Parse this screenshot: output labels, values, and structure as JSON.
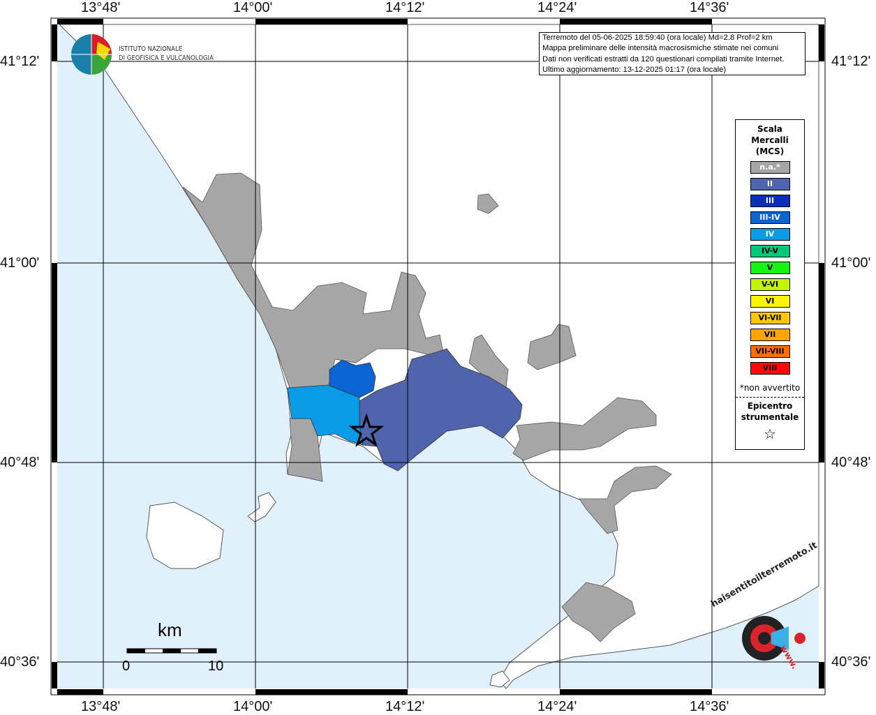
{
  "info_box": {
    "lines": [
      "Terremoto del 05-06-2025 18:59:40 (ora locale) Md=2.8 Prof=2 km",
      "Mappa preliminare delle intensità macrosismiche stimate nei comuni",
      "Dati non verificati estratti da 120 questionari compilati tramite Internet.",
      "Ultimo aggiornamento: 13-12-2025 01:17 (ora locale)"
    ]
  },
  "logo": {
    "line1": "ISTITUTO NAZIONALE",
    "line2": "DI GEOFISICA E VULCANOLOGIA"
  },
  "axes": {
    "lon_labels": [
      "13°48'",
      "14°00'",
      "14°12'",
      "14°24'",
      "14°36'"
    ],
    "lat_labels": [
      "41°12'",
      "41°00'",
      "40°48'",
      "40°36'"
    ]
  },
  "legend": {
    "title": [
      "Scala",
      "Mercalli",
      "(MCS)"
    ],
    "items": [
      {
        "label": "n.a.*",
        "color": "#a6a6a6",
        "text": "#fff"
      },
      {
        "label": "II",
        "color": "#5064ad",
        "text": "#fff"
      },
      {
        "label": "III",
        "color": "#0a2fb8",
        "text": "#fff"
      },
      {
        "label": "III-IV",
        "color": "#0a64d2",
        "text": "#fff"
      },
      {
        "label": "IV",
        "color": "#0a9be6",
        "text": "#fff"
      },
      {
        "label": "IV-V",
        "color": "#00c878",
        "text": "#000"
      },
      {
        "label": "V",
        "color": "#14f514",
        "text": "#000"
      },
      {
        "label": "V-VI",
        "color": "#c3f500",
        "text": "#000"
      },
      {
        "label": "VI",
        "color": "#fff500",
        "text": "#000"
      },
      {
        "label": "VI-VII",
        "color": "#ffc800",
        "text": "#000"
      },
      {
        "label": "VII",
        "color": "#ffa500",
        "text": "#000"
      },
      {
        "label": "VII-VIII",
        "color": "#ff6e00",
        "text": "#000"
      },
      {
        "label": "VIII",
        "color": "#ff0a0a",
        "text": "#000"
      }
    ],
    "note": "*non avvertito",
    "epicenter_title": [
      "Epicentro",
      "strumentale"
    ],
    "epicenter_symbol": "☆"
  },
  "scale_bar": {
    "unit": "km",
    "min": "0",
    "max": "10"
  },
  "haisentito": {
    "text": "haisentitoilterremoto.it",
    "url_text": "www."
  },
  "colors": {
    "sea": "#e1f1fc",
    "land": "#ffffff",
    "na": "#a6a6a6",
    "II": "#5064ad",
    "III-IV": "#0a64d2",
    "IV": "#0a9be6"
  }
}
